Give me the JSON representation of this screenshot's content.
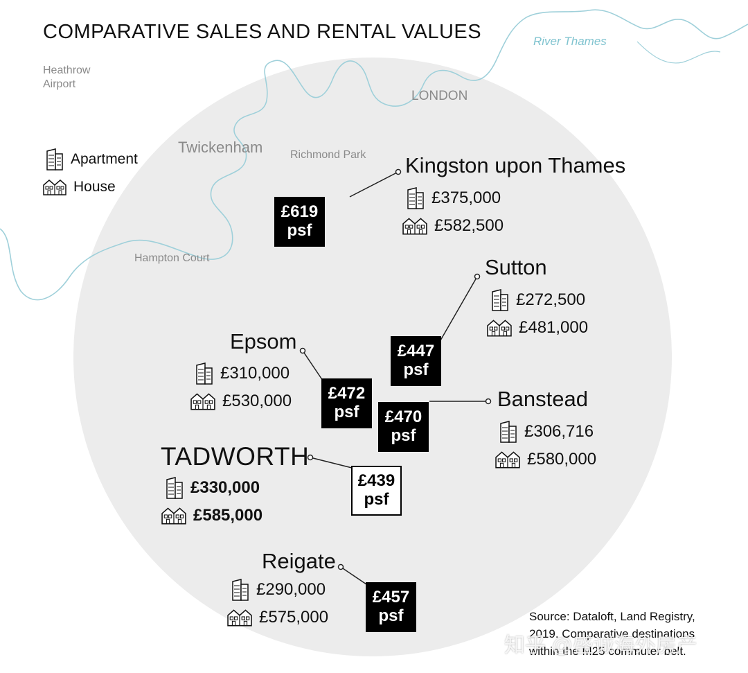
{
  "title": "COMPARATIVE SALES AND RENTAL VALUES",
  "river_label": "River Thames",
  "places": {
    "heathrow_line1": "Heathrow",
    "heathrow_line2": "Airport",
    "london": "LONDON",
    "twickenham": "Twickenham",
    "richmond_park": "Richmond Park",
    "hampton_court": "Hampton Court"
  },
  "legend": {
    "apartment": "Apartment",
    "house": "House"
  },
  "towns": {
    "kingston": {
      "name": "Kingston upon Thames",
      "apartment": "£375,000",
      "house": "£582,500",
      "psf_value": "£619",
      "psf_unit": "psf"
    },
    "sutton": {
      "name": "Sutton",
      "apartment": "£272,500",
      "house": "£481,000",
      "psf_value": "£447",
      "psf_unit": "psf"
    },
    "epsom": {
      "name": "Epsom",
      "apartment": "£310,000",
      "house": "£530,000",
      "psf_value": "£472",
      "psf_unit": "psf"
    },
    "banstead": {
      "name": "Banstead",
      "apartment": "£306,716",
      "house": "£580,000",
      "psf_value": "£470",
      "psf_unit": "psf"
    },
    "tadworth": {
      "name": "TADWORTH",
      "apartment": "£330,000",
      "house": "£585,000",
      "psf_value": "£439",
      "psf_unit": "psf"
    },
    "reigate": {
      "name": "Reigate",
      "apartment": "£290,000",
      "house": "£575,000",
      "psf_value": "£457",
      "psf_unit": "psf"
    }
  },
  "source": {
    "line1": "Source: Dataloft, Land Registry,",
    "line2": "2019. Comparative destinations",
    "line3": "within the M25 commuter belt."
  },
  "watermark": "知乎 @盛诚海外房产",
  "colors": {
    "circle": "#ececec",
    "river": "#9fd0da",
    "psf_box": "#000000",
    "text": "#111111",
    "place_text": "#8a8a8a"
  }
}
